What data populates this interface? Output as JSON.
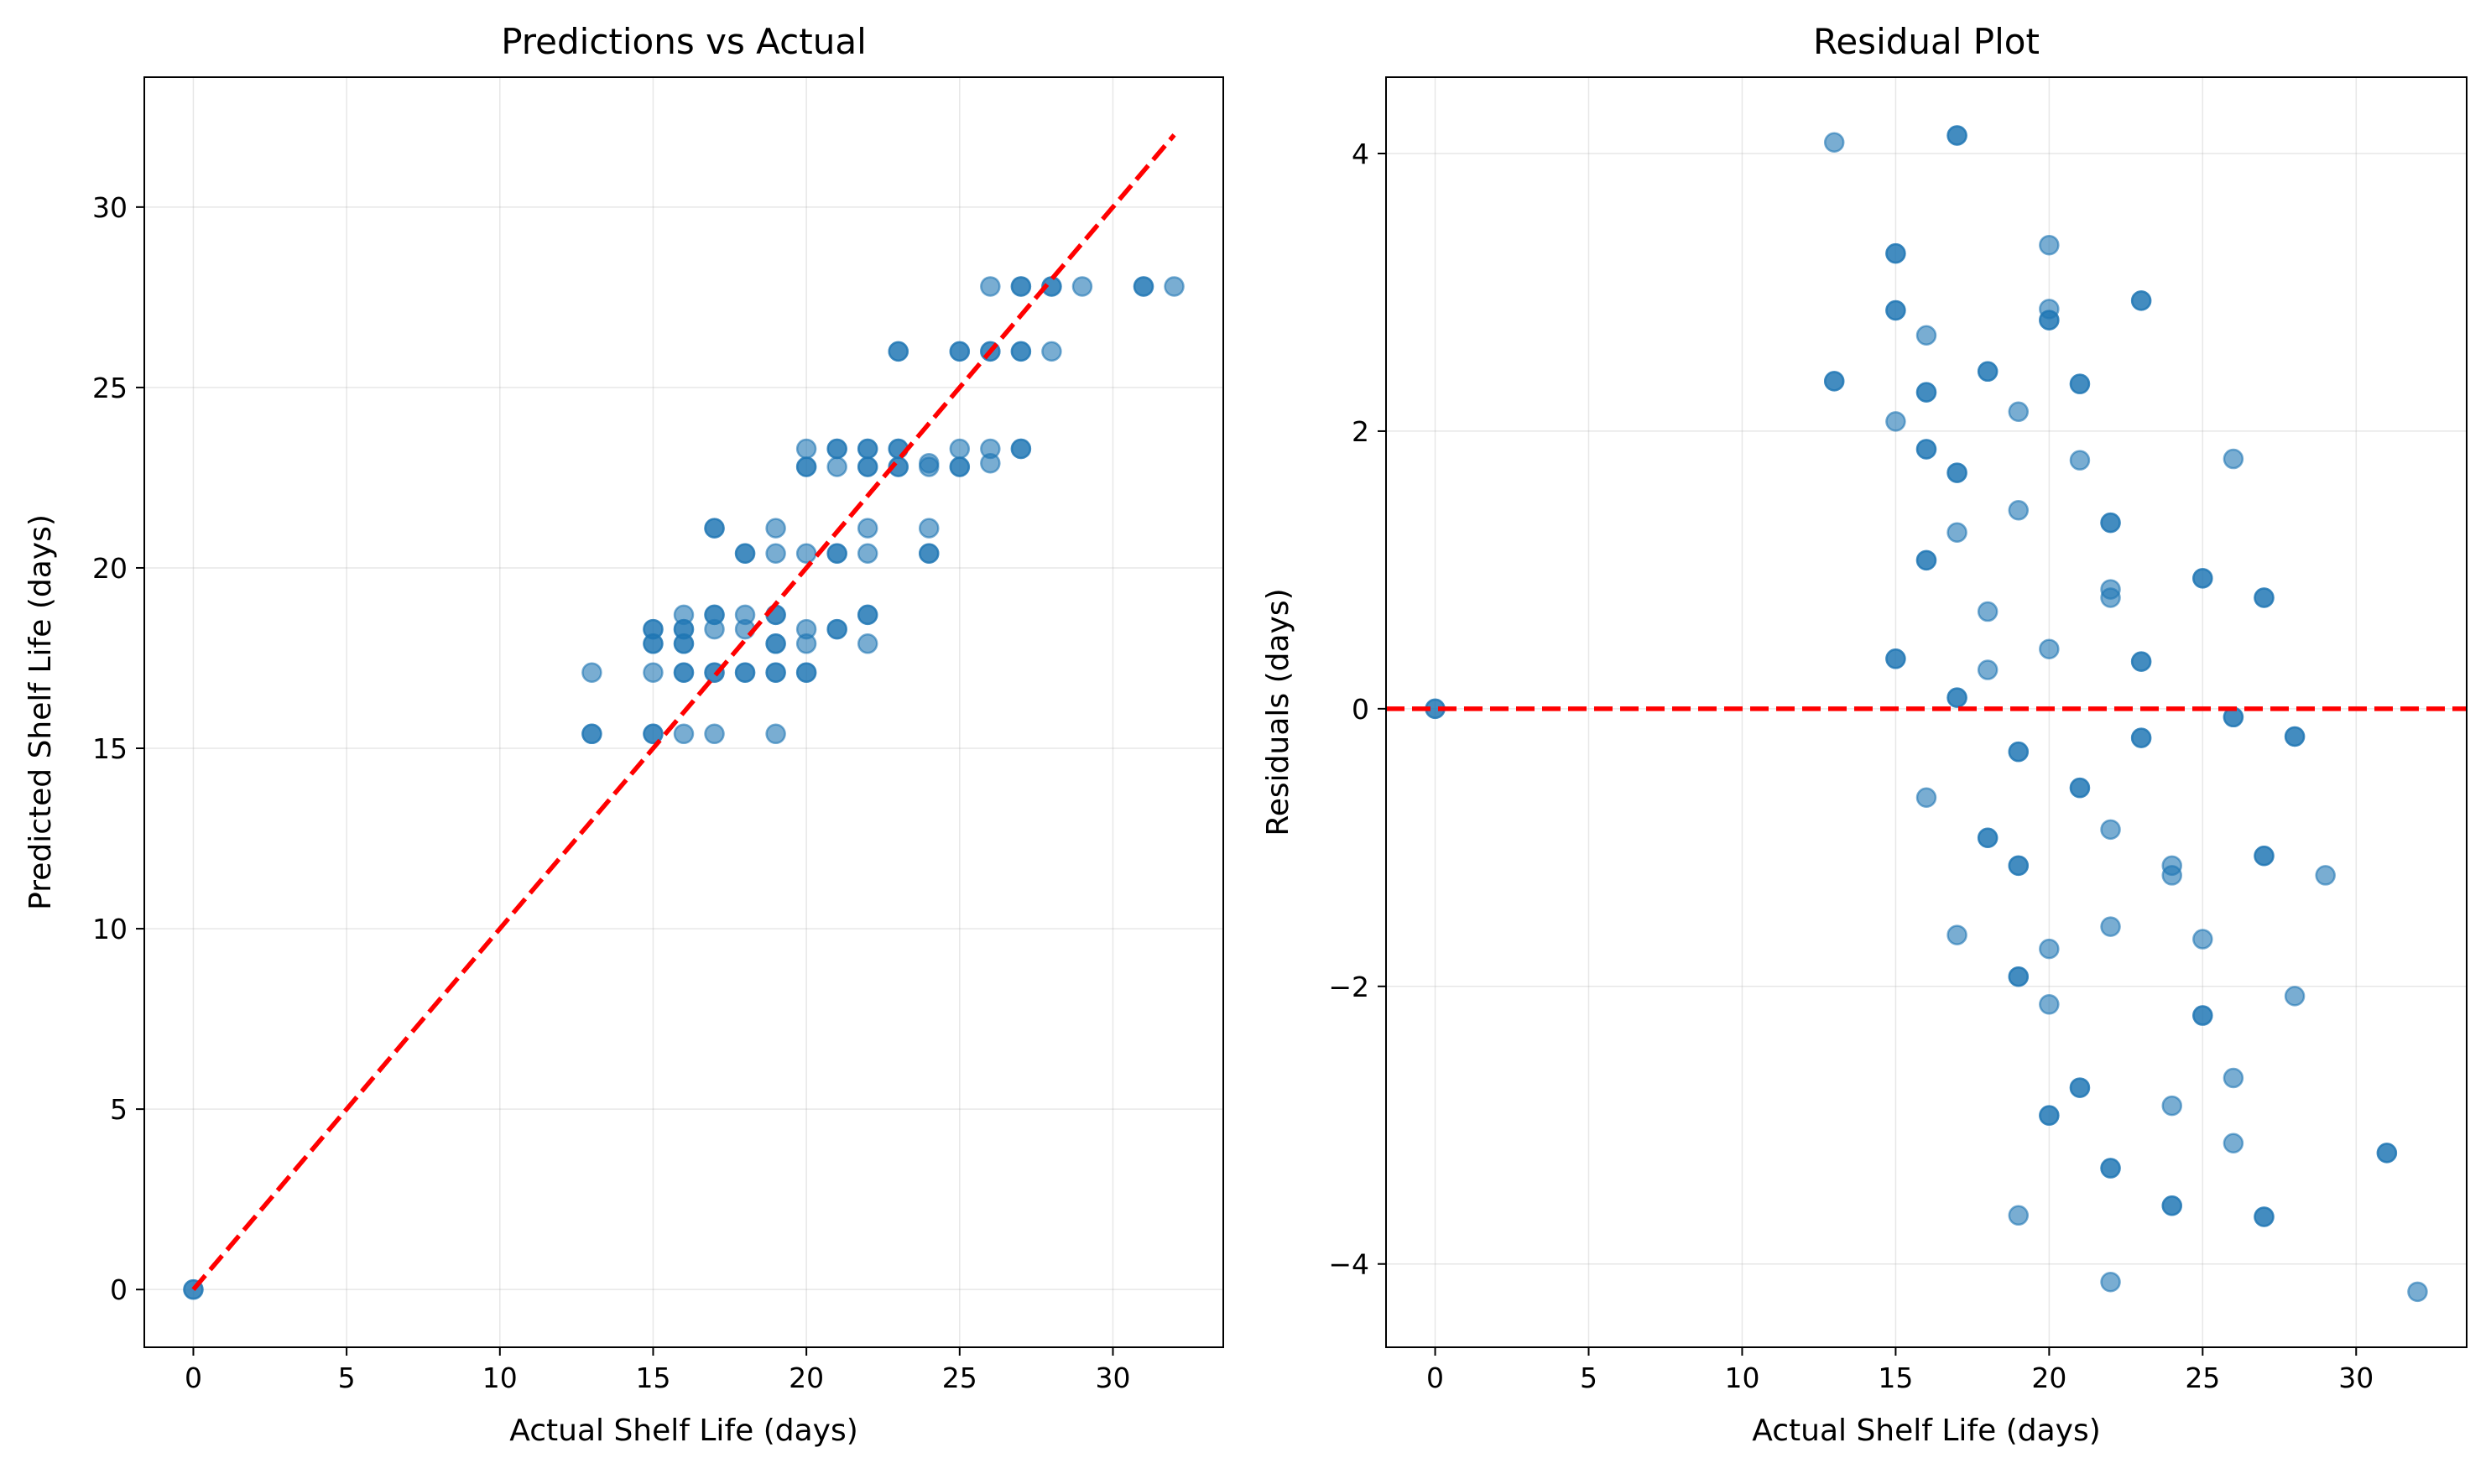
{
  "chart_data": [
    {
      "type": "scatter",
      "title": "Predictions vs Actual",
      "xlabel": "Actual Shelf Life (days)",
      "ylabel": "Predicted Shelf Life (days)",
      "xlim": [
        -1.6,
        33.6
      ],
      "ylim": [
        -1.6,
        33.6
      ],
      "xticks": [
        0,
        5,
        10,
        15,
        20,
        25,
        30
      ],
      "xtick_labels": [
        "0",
        "5",
        "10",
        "15",
        "20",
        "25",
        "30"
      ],
      "yticks": [
        0,
        5,
        10,
        15,
        20,
        25,
        30
      ],
      "ytick_labels": [
        "0",
        "5",
        "10",
        "15",
        "20",
        "25",
        "30"
      ],
      "grid": true,
      "point_color": "#1f77b4",
      "point_alpha": 0.6,
      "reference_line": {
        "x": [
          0,
          32
        ],
        "y": [
          0,
          32
        ],
        "color": "#ff0000",
        "style": "dashed"
      },
      "points": [
        [
          0,
          0
        ],
        [
          0,
          0
        ],
        [
          13,
          17.1
        ],
        [
          13,
          15.4
        ],
        [
          13,
          15.4
        ],
        [
          15,
          18.3
        ],
        [
          15,
          18.3
        ],
        [
          15,
          17.9
        ],
        [
          15,
          17.9
        ],
        [
          15,
          17.1
        ],
        [
          15,
          15.4
        ],
        [
          15,
          15.4
        ],
        [
          16,
          18.7
        ],
        [
          16,
          18.3
        ],
        [
          16,
          18.3
        ],
        [
          16,
          17.9
        ],
        [
          16,
          17.9
        ],
        [
          16,
          17.1
        ],
        [
          16,
          17.1
        ],
        [
          16,
          15.4
        ],
        [
          17,
          21.1
        ],
        [
          17,
          21.1
        ],
        [
          17,
          18.7
        ],
        [
          17,
          18.7
        ],
        [
          17,
          18.3
        ],
        [
          17,
          17.1
        ],
        [
          17,
          17.1
        ],
        [
          17,
          15.4
        ],
        [
          18,
          20.4
        ],
        [
          18,
          20.4
        ],
        [
          18,
          18.7
        ],
        [
          18,
          18.3
        ],
        [
          18,
          17.1
        ],
        [
          18,
          17.1
        ],
        [
          19,
          21.1
        ],
        [
          19,
          20.4
        ],
        [
          19,
          18.7
        ],
        [
          19,
          18.7
        ],
        [
          19,
          17.9
        ],
        [
          19,
          17.9
        ],
        [
          19,
          17.1
        ],
        [
          19,
          17.1
        ],
        [
          19,
          15.4
        ],
        [
          20,
          23.3
        ],
        [
          20,
          22.8
        ],
        [
          20,
          22.8
        ],
        [
          20,
          20.4
        ],
        [
          20,
          18.3
        ],
        [
          20,
          17.9
        ],
        [
          20,
          17.1
        ],
        [
          20,
          17.1
        ],
        [
          21,
          23.3
        ],
        [
          21,
          23.3
        ],
        [
          21,
          22.8
        ],
        [
          21,
          20.4
        ],
        [
          21,
          20.4
        ],
        [
          21,
          18.3
        ],
        [
          21,
          18.3
        ],
        [
          22,
          23.3
        ],
        [
          22,
          23.3
        ],
        [
          22,
          22.8
        ],
        [
          22,
          22.8
        ],
        [
          22,
          21.1
        ],
        [
          22,
          20.4
        ],
        [
          22,
          18.7
        ],
        [
          22,
          18.7
        ],
        [
          22,
          17.9
        ],
        [
          23,
          26.0
        ],
        [
          23,
          26.0
        ],
        [
          23,
          23.3
        ],
        [
          23,
          23.3
        ],
        [
          23,
          22.8
        ],
        [
          23,
          22.8
        ],
        [
          24,
          22.9
        ],
        [
          24,
          22.8
        ],
        [
          24,
          21.1
        ],
        [
          24,
          20.4
        ],
        [
          24,
          20.4
        ],
        [
          25,
          26.0
        ],
        [
          25,
          26.0
        ],
        [
          25,
          23.3
        ],
        [
          25,
          22.8
        ],
        [
          25,
          22.8
        ],
        [
          26,
          27.8
        ],
        [
          26,
          26.0
        ],
        [
          26,
          26.0
        ],
        [
          26,
          23.3
        ],
        [
          26,
          22.9
        ],
        [
          27,
          27.8
        ],
        [
          27,
          27.8
        ],
        [
          27,
          26.0
        ],
        [
          27,
          26.0
        ],
        [
          27,
          23.3
        ],
        [
          27,
          23.3
        ],
        [
          28,
          27.8
        ],
        [
          28,
          27.8
        ],
        [
          28,
          26.0
        ],
        [
          29,
          27.8
        ],
        [
          31,
          27.8
        ],
        [
          31,
          27.8
        ],
        [
          32,
          27.8
        ]
      ]
    },
    {
      "type": "scatter",
      "title": "Residual Plot",
      "xlabel": "Actual Shelf Life (days)",
      "ylabel": "Residuals (days)",
      "xlim": [
        -1.6,
        33.6
      ],
      "ylim": [
        -4.6,
        4.55
      ],
      "xticks": [
        0,
        5,
        10,
        15,
        20,
        25,
        30
      ],
      "xtick_labels": [
        "0",
        "5",
        "10",
        "15",
        "20",
        "25",
        "30"
      ],
      "yticks": [
        -4,
        -2,
        0,
        2,
        4
      ],
      "ytick_labels": [
        "−4",
        "−2",
        "0",
        "2",
        "4"
      ],
      "grid": true,
      "point_color": "#1f77b4",
      "point_alpha": 0.6,
      "reference_line": {
        "x": [
          -1.6,
          33.6
        ],
        "y": [
          0,
          0
        ],
        "color": "#ff0000",
        "style": "dashed"
      },
      "points": [
        [
          0,
          0
        ],
        [
          0,
          0
        ],
        [
          13,
          4.08
        ],
        [
          13,
          2.36
        ],
        [
          13,
          2.36
        ],
        [
          15,
          3.28
        ],
        [
          15,
          3.28
        ],
        [
          15,
          2.87
        ],
        [
          15,
          2.87
        ],
        [
          15,
          2.07
        ],
        [
          15,
          0.36
        ],
        [
          15,
          0.36
        ],
        [
          16,
          2.69
        ],
        [
          16,
          2.28
        ],
        [
          16,
          2.28
        ],
        [
          16,
          1.87
        ],
        [
          16,
          1.87
        ],
        [
          16,
          1.07
        ],
        [
          16,
          1.07
        ],
        [
          16,
          -0.64
        ],
        [
          17,
          4.13
        ],
        [
          17,
          4.13
        ],
        [
          17,
          1.7
        ],
        [
          17,
          1.7
        ],
        [
          17,
          1.27
        ],
        [
          17,
          0.08
        ],
        [
          17,
          0.08
        ],
        [
          17,
          -1.63
        ],
        [
          18,
          2.43
        ],
        [
          18,
          2.43
        ],
        [
          18,
          0.7
        ],
        [
          18,
          0.28
        ],
        [
          18,
          -0.93
        ],
        [
          18,
          -0.93
        ],
        [
          19,
          2.14
        ],
        [
          19,
          1.43
        ],
        [
          19,
          -0.31
        ],
        [
          19,
          -0.31
        ],
        [
          19,
          -1.13
        ],
        [
          19,
          -1.13
        ],
        [
          19,
          -1.93
        ],
        [
          19,
          -1.93
        ],
        [
          19,
          -3.65
        ],
        [
          20,
          3.34
        ],
        [
          20,
          2.88
        ],
        [
          20,
          2.8
        ],
        [
          20,
          2.8
        ],
        [
          20,
          0.43
        ],
        [
          20,
          -1.73
        ],
        [
          20,
          -2.13
        ],
        [
          20,
          -2.93
        ],
        [
          20,
          -2.93
        ],
        [
          21,
          2.34
        ],
        [
          21,
          2.34
        ],
        [
          21,
          1.79
        ],
        [
          21,
          -0.57
        ],
        [
          21,
          -0.57
        ],
        [
          21,
          -2.73
        ],
        [
          21,
          -2.73
        ],
        [
          22,
          1.34
        ],
        [
          22,
          1.34
        ],
        [
          22,
          0.86
        ],
        [
          22,
          0.8
        ],
        [
          22,
          -0.87
        ],
        [
          22,
          -1.57
        ],
        [
          22,
          -3.31
        ],
        [
          22,
          -3.31
        ],
        [
          22,
          -4.13
        ],
        [
          23,
          2.94
        ],
        [
          23,
          2.94
        ],
        [
          23,
          0.34
        ],
        [
          23,
          0.34
        ],
        [
          23,
          -0.21
        ],
        [
          23,
          -0.21
        ],
        [
          24,
          -1.13
        ],
        [
          24,
          -1.2
        ],
        [
          24,
          -2.86
        ],
        [
          24,
          -3.58
        ],
        [
          24,
          -3.58
        ],
        [
          25,
          0.94
        ],
        [
          25,
          0.94
        ],
        [
          25,
          -1.66
        ],
        [
          25,
          -2.21
        ],
        [
          25,
          -2.21
        ],
        [
          26,
          1.8
        ],
        [
          26,
          -0.06
        ],
        [
          26,
          -0.06
        ],
        [
          26,
          -2.66
        ],
        [
          26,
          -3.13
        ],
        [
          27,
          0.8
        ],
        [
          27,
          0.8
        ],
        [
          27,
          -1.06
        ],
        [
          27,
          -1.06
        ],
        [
          27,
          -3.66
        ],
        [
          27,
          -3.66
        ],
        [
          28,
          -0.2
        ],
        [
          28,
          -0.2
        ],
        [
          28,
          -2.07
        ],
        [
          29,
          -1.2
        ],
        [
          31,
          -3.2
        ],
        [
          31,
          -3.2
        ],
        [
          32,
          -4.2
        ]
      ]
    }
  ]
}
